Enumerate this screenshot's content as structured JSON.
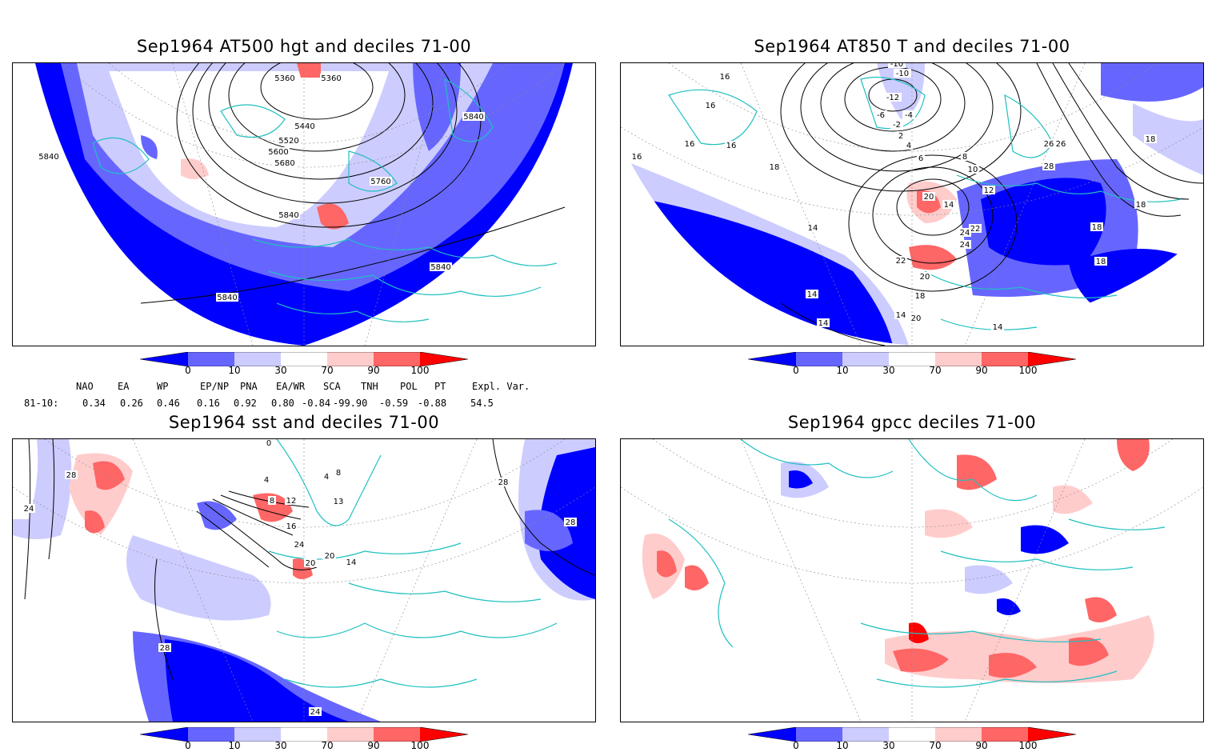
{
  "panels": [
    {
      "title": "Sep1964 AT500 hgt and deciles 71-00",
      "contour_labels": [
        "5360",
        "5360",
        "5440",
        "5520",
        "5600",
        "5680",
        "5760",
        "5840",
        "5840",
        "5840",
        "5840",
        "5840"
      ]
    },
    {
      "title": "Sep1964 AT850 T and deciles 71-00",
      "contour_labels": [
        "-10",
        "-10",
        "-12",
        "-6",
        "-4",
        "-2",
        "2",
        "4",
        "6",
        "8",
        "10",
        "12",
        "14",
        "16",
        "16",
        "16",
        "16",
        "16",
        "18",
        "18",
        "18",
        "18",
        "18",
        "20",
        "20",
        "22",
        "22",
        "24",
        "24",
        "26",
        "26",
        "28",
        "14",
        "14",
        "14",
        "14",
        "14",
        "20",
        "18"
      ]
    },
    {
      "title": "Sep1964 sst and deciles 71-00",
      "contour_labels": [
        "28",
        "24",
        "0",
        "4",
        "8",
        "12",
        "16",
        "20",
        "24",
        "24",
        "28",
        "20",
        "28",
        "28",
        "24",
        "14",
        "4",
        "8",
        "13"
      ]
    },
    {
      "title": "Sep1964 gpcc deciles 71-00",
      "contour_labels": []
    }
  ],
  "colorbar": {
    "ticks": [
      "0",
      "10",
      "30",
      "70",
      "90",
      "100"
    ],
    "colors": [
      "#0000ff",
      "#6666ff",
      "#ccccff",
      "#ffffff",
      "#ffcccc",
      "#ff6666",
      "#ff0000"
    ]
  },
  "indices": {
    "headers": [
      "NAO",
      "EA",
      "WP",
      "EP/NP",
      "PNA",
      "EA/WR",
      "SCA",
      "TNH",
      "POL",
      "PT",
      "Expl. Var."
    ],
    "row_label": "81-10:",
    "values": [
      "0.34",
      "0.26",
      "0.46",
      "0.16",
      "0.92",
      "0.80",
      "-0.84",
      "-99.90",
      "-0.59",
      "-0.88",
      "54.5"
    ]
  }
}
